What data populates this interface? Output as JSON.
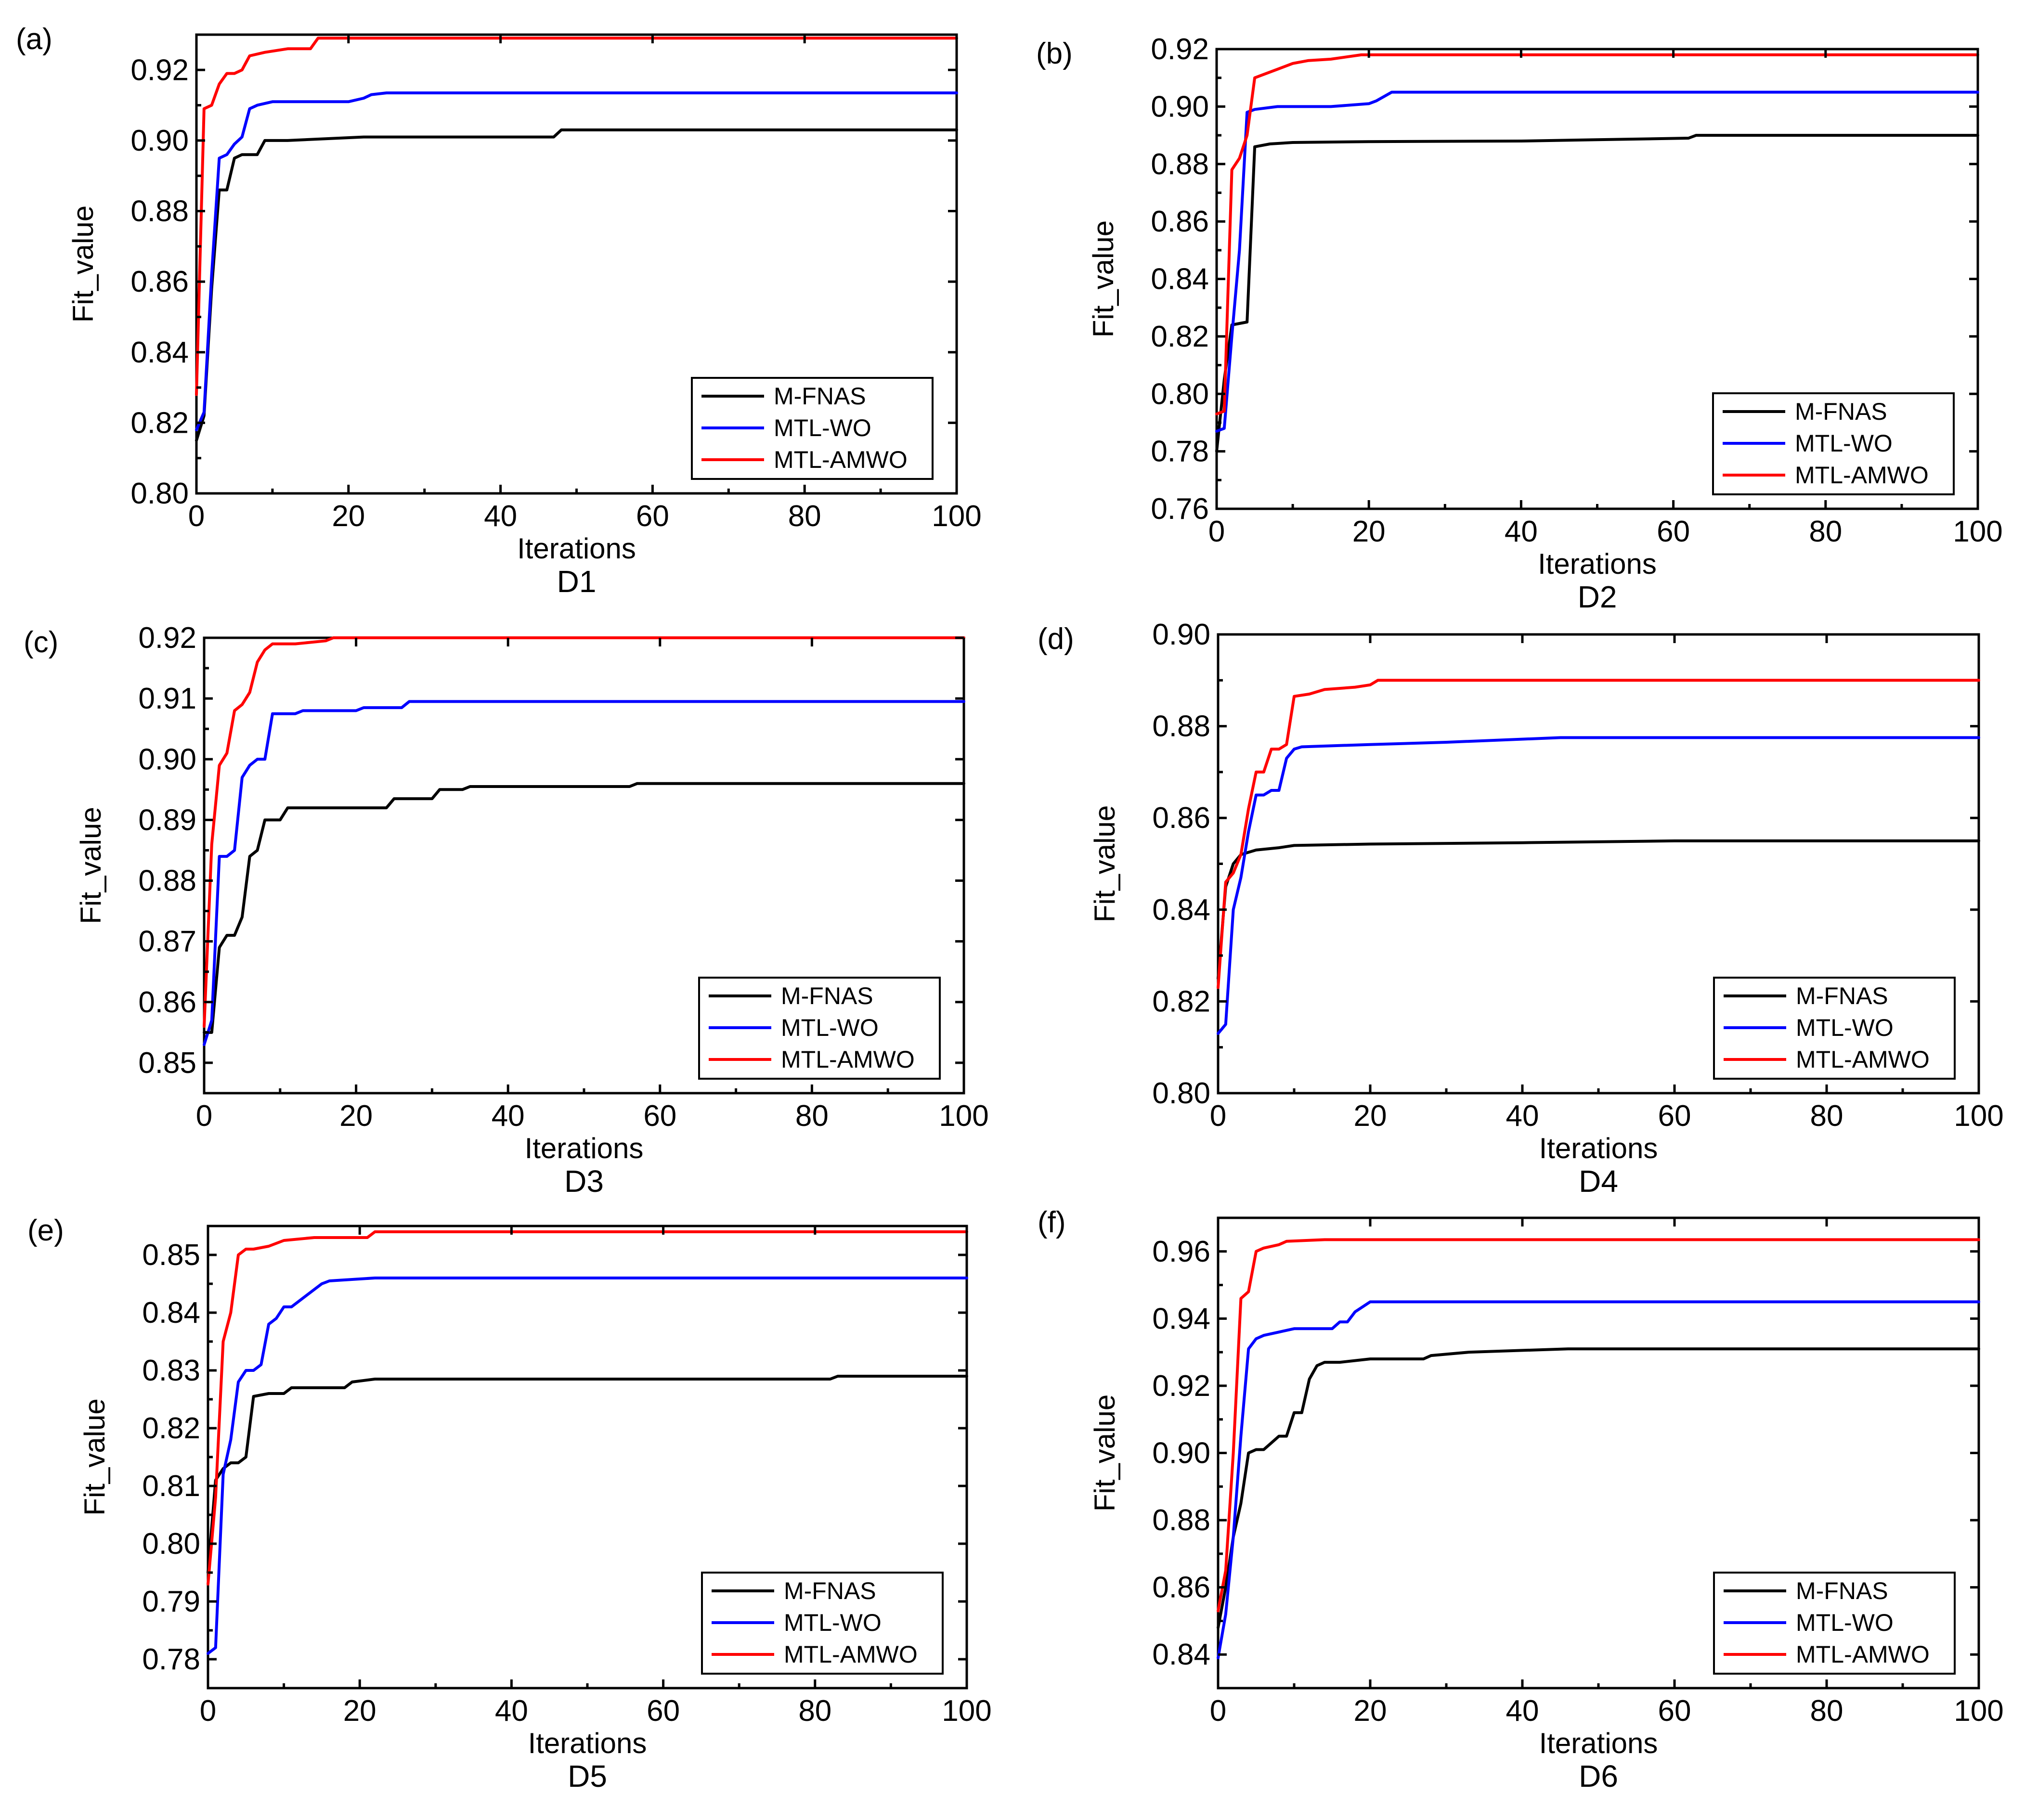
{
  "chart_data": [
    {
      "type": "line",
      "panel_label": "(a)",
      "dataset_label": "D1",
      "xlabel": "Iterations",
      "ylabel": "Fit_value",
      "xlim": [
        0,
        100
      ],
      "ylim": [
        0.8,
        0.93
      ],
      "xticks": [
        0,
        20,
        40,
        60,
        80,
        100
      ],
      "yticks": [
        0.8,
        0.82,
        0.84,
        0.86,
        0.88,
        0.9,
        0.92
      ],
      "ytick_labels": [
        "0.80",
        "0.82",
        "0.84",
        "0.86",
        "0.88",
        "0.90",
        "0.92"
      ],
      "legend_position": "bottom-right",
      "series": [
        {
          "name": "M-FNAS",
          "color": "#000000",
          "x": [
            0,
            1,
            2,
            3,
            4,
            5,
            6,
            7,
            8,
            9,
            12,
            22,
            47,
            48,
            100
          ],
          "values": [
            0.815,
            0.822,
            0.858,
            0.886,
            0.886,
            0.895,
            0.896,
            0.896,
            0.896,
            0.9,
            0.9,
            0.901,
            0.901,
            0.903,
            0.903
          ]
        },
        {
          "name": "MTL-WO",
          "color": "#0000ff",
          "x": [
            0,
            1,
            2,
            3,
            4,
            5,
            6,
            7,
            8,
            10,
            20,
            22,
            23,
            25,
            100
          ],
          "values": [
            0.818,
            0.823,
            0.862,
            0.895,
            0.896,
            0.899,
            0.901,
            0.909,
            0.91,
            0.911,
            0.911,
            0.912,
            0.913,
            0.9135,
            0.9135
          ]
        },
        {
          "name": "MTL-AMWO",
          "color": "#ff0000",
          "x": [
            0,
            1,
            2,
            3,
            4,
            5,
            6,
            7,
            9,
            12,
            15,
            16,
            100
          ],
          "values": [
            0.828,
            0.909,
            0.91,
            0.916,
            0.919,
            0.919,
            0.92,
            0.924,
            0.925,
            0.926,
            0.926,
            0.929,
            0.929
          ]
        }
      ]
    },
    {
      "type": "line",
      "panel_label": "(b)",
      "dataset_label": "D2",
      "xlabel": "Iterations",
      "ylabel": "Fit_value",
      "xlim": [
        0,
        100
      ],
      "ylim": [
        0.76,
        0.92
      ],
      "xticks": [
        0,
        20,
        40,
        60,
        80,
        100
      ],
      "yticks": [
        0.76,
        0.78,
        0.8,
        0.82,
        0.84,
        0.86,
        0.88,
        0.9,
        0.92
      ],
      "ytick_labels": [
        "0.76",
        "0.78",
        "0.80",
        "0.82",
        "0.84",
        "0.86",
        "0.88",
        "0.90",
        "0.92"
      ],
      "legend_position": "bottom-right",
      "series": [
        {
          "name": "M-FNAS",
          "color": "#000000",
          "x": [
            0,
            1,
            2,
            4,
            5,
            7,
            10,
            20,
            40,
            62,
            63,
            100
          ],
          "values": [
            0.78,
            0.805,
            0.824,
            0.825,
            0.886,
            0.887,
            0.8875,
            0.8878,
            0.888,
            0.889,
            0.89,
            0.89
          ]
        },
        {
          "name": "MTL-WO",
          "color": "#0000ff",
          "x": [
            0,
            1,
            2,
            3,
            4,
            5,
            8,
            15,
            20,
            21,
            23,
            100
          ],
          "values": [
            0.787,
            0.788,
            0.82,
            0.85,
            0.898,
            0.899,
            0.9,
            0.9,
            0.901,
            0.902,
            0.905,
            0.905
          ]
        },
        {
          "name": "MTL-AMWO",
          "color": "#ff0000",
          "x": [
            0,
            1,
            2,
            3,
            4,
            5,
            6,
            8,
            10,
            12,
            15,
            19,
            100
          ],
          "values": [
            0.793,
            0.794,
            0.878,
            0.882,
            0.89,
            0.91,
            0.911,
            0.913,
            0.915,
            0.916,
            0.9165,
            0.918,
            0.918
          ]
        }
      ]
    },
    {
      "type": "line",
      "panel_label": "(c)",
      "dataset_label": "D3",
      "xlabel": "Iterations",
      "ylabel": "Fit_value",
      "xlim": [
        0,
        100
      ],
      "ylim": [
        0.845,
        0.92
      ],
      "xticks": [
        0,
        20,
        40,
        60,
        80,
        100
      ],
      "yticks": [
        0.85,
        0.86,
        0.87,
        0.88,
        0.89,
        0.9,
        0.91,
        0.92
      ],
      "ytick_labels": [
        "0.85",
        "0.86",
        "0.87",
        "0.88",
        "0.89",
        "0.90",
        "0.91",
        "0.92"
      ],
      "legend_position": "bottom-right",
      "series": [
        {
          "name": "M-FNAS",
          "color": "#000000",
          "x": [
            0,
            1,
            2,
            3,
            4,
            5,
            6,
            7,
            8,
            10,
            11,
            15,
            24,
            25,
            30,
            31,
            34,
            35,
            56,
            57,
            100
          ],
          "values": [
            0.855,
            0.855,
            0.869,
            0.871,
            0.871,
            0.874,
            0.884,
            0.885,
            0.89,
            0.89,
            0.892,
            0.892,
            0.892,
            0.8935,
            0.8935,
            0.895,
            0.895,
            0.8955,
            0.8955,
            0.896,
            0.896
          ]
        },
        {
          "name": "MTL-WO",
          "color": "#0000ff",
          "x": [
            0,
            1,
            2,
            3,
            4,
            5,
            6,
            7,
            8,
            9,
            12,
            13,
            20,
            21,
            26,
            27,
            100
          ],
          "values": [
            0.853,
            0.857,
            0.884,
            0.884,
            0.885,
            0.897,
            0.899,
            0.9,
            0.9,
            0.9075,
            0.9075,
            0.908,
            0.908,
            0.9085,
            0.9085,
            0.9095,
            0.9095
          ]
        },
        {
          "name": "MTL-AMWO",
          "color": "#ff0000",
          "x": [
            0,
            1,
            2,
            3,
            4,
            5,
            6,
            7,
            8,
            9,
            12,
            16,
            17,
            100
          ],
          "values": [
            0.856,
            0.886,
            0.899,
            0.901,
            0.908,
            0.909,
            0.911,
            0.916,
            0.918,
            0.919,
            0.919,
            0.9195,
            0.92,
            0.92
          ]
        }
      ]
    },
    {
      "type": "line",
      "panel_label": "(d)",
      "dataset_label": "D4",
      "xlabel": "Iterations",
      "ylabel": "Fit_value",
      "xlim": [
        0,
        100
      ],
      "ylim": [
        0.8,
        0.9
      ],
      "xticks": [
        0,
        20,
        40,
        60,
        80,
        100
      ],
      "yticks": [
        0.8,
        0.82,
        0.84,
        0.86,
        0.88,
        0.9
      ],
      "ytick_labels": [
        "0.80",
        "0.82",
        "0.84",
        "0.86",
        "0.88",
        "0.90"
      ],
      "legend_position": "bottom-right",
      "series": [
        {
          "name": "M-FNAS",
          "color": "#000000",
          "x": [
            0,
            1,
            2,
            3,
            5,
            8,
            10,
            20,
            40,
            60,
            100
          ],
          "values": [
            0.825,
            0.845,
            0.85,
            0.852,
            0.853,
            0.8535,
            0.854,
            0.8543,
            0.8546,
            0.855,
            0.855
          ]
        },
        {
          "name": "MTL-WO",
          "color": "#0000ff",
          "x": [
            0,
            1,
            2,
            3,
            4,
            5,
            6,
            7,
            8,
            9,
            10,
            11,
            20,
            30,
            45,
            100
          ],
          "values": [
            0.813,
            0.815,
            0.84,
            0.847,
            0.857,
            0.865,
            0.865,
            0.866,
            0.866,
            0.873,
            0.875,
            0.8755,
            0.876,
            0.8765,
            0.8775,
            0.8775
          ]
        },
        {
          "name": "MTL-AMWO",
          "color": "#ff0000",
          "x": [
            0,
            1,
            2,
            3,
            4,
            5,
            6,
            7,
            8,
            9,
            10,
            12,
            14,
            18,
            20,
            21,
            100
          ],
          "values": [
            0.823,
            0.846,
            0.848,
            0.852,
            0.862,
            0.87,
            0.87,
            0.875,
            0.875,
            0.876,
            0.8865,
            0.887,
            0.888,
            0.8885,
            0.889,
            0.89,
            0.89
          ]
        }
      ]
    },
    {
      "type": "line",
      "panel_label": "(e)",
      "dataset_label": "D5",
      "xlabel": "Iterations",
      "ylabel": "Fit_value",
      "xlim": [
        0,
        100
      ],
      "ylim": [
        0.775,
        0.855
      ],
      "xticks": [
        0,
        20,
        40,
        60,
        80,
        100
      ],
      "yticks": [
        0.78,
        0.79,
        0.8,
        0.81,
        0.82,
        0.83,
        0.84,
        0.85
      ],
      "ytick_labels": [
        "0.78",
        "0.79",
        "0.80",
        "0.81",
        "0.82",
        "0.83",
        "0.84",
        "0.85"
      ],
      "legend_position": "bottom-right",
      "series": [
        {
          "name": "M-FNAS",
          "color": "#000000",
          "x": [
            0,
            1,
            2,
            3,
            4,
            5,
            6,
            8,
            10,
            11,
            18,
            19,
            22,
            82,
            83,
            100
          ],
          "values": [
            0.795,
            0.811,
            0.813,
            0.814,
            0.814,
            0.815,
            0.8255,
            0.826,
            0.826,
            0.827,
            0.827,
            0.828,
            0.8285,
            0.8285,
            0.829,
            0.829
          ]
        },
        {
          "name": "MTL-WO",
          "color": "#0000ff",
          "x": [
            0,
            1,
            2,
            3,
            4,
            5,
            6,
            7,
            8,
            9,
            10,
            11,
            12,
            14,
            15,
            16,
            22,
            52,
            100
          ],
          "values": [
            0.781,
            0.782,
            0.812,
            0.818,
            0.828,
            0.83,
            0.83,
            0.831,
            0.838,
            0.839,
            0.841,
            0.841,
            0.842,
            0.844,
            0.845,
            0.8455,
            0.846,
            0.846,
            0.846
          ]
        },
        {
          "name": "MTL-AMWO",
          "color": "#ff0000",
          "x": [
            0,
            1,
            2,
            3,
            4,
            5,
            6,
            8,
            10,
            14,
            18,
            21,
            22,
            100
          ],
          "values": [
            0.793,
            0.808,
            0.835,
            0.84,
            0.85,
            0.851,
            0.851,
            0.8515,
            0.8525,
            0.853,
            0.853,
            0.853,
            0.854,
            0.854
          ]
        }
      ]
    },
    {
      "type": "line",
      "panel_label": "(f)",
      "dataset_label": "D6",
      "xlabel": "Iterations",
      "ylabel": "Fit_value",
      "xlim": [
        0,
        100
      ],
      "ylim": [
        0.83,
        0.97
      ],
      "xticks": [
        0,
        20,
        40,
        60,
        80,
        100
      ],
      "yticks": [
        0.84,
        0.86,
        0.88,
        0.9,
        0.92,
        0.94,
        0.96
      ],
      "ytick_labels": [
        "0.84",
        "0.86",
        "0.88",
        "0.90",
        "0.92",
        "0.94",
        "0.96"
      ],
      "legend_position": "bottom-right",
      "series": [
        {
          "name": "M-FNAS",
          "color": "#000000",
          "x": [
            0,
            1,
            2,
            3,
            4,
            5,
            6,
            7,
            8,
            9,
            10,
            11,
            12,
            13,
            14,
            16,
            18,
            20,
            27,
            28,
            33,
            46,
            100
          ],
          "values": [
            0.848,
            0.86,
            0.875,
            0.885,
            0.9,
            0.901,
            0.901,
            0.903,
            0.905,
            0.905,
            0.912,
            0.912,
            0.922,
            0.926,
            0.927,
            0.927,
            0.9275,
            0.928,
            0.928,
            0.929,
            0.93,
            0.931,
            0.931
          ]
        },
        {
          "name": "MTL-WO",
          "color": "#0000ff",
          "x": [
            0,
            1,
            2,
            3,
            4,
            5,
            6,
            8,
            10,
            15,
            16,
            17,
            18,
            20,
            100
          ],
          "values": [
            0.839,
            0.852,
            0.875,
            0.905,
            0.931,
            0.934,
            0.935,
            0.936,
            0.937,
            0.937,
            0.939,
            0.939,
            0.942,
            0.945,
            0.945
          ]
        },
        {
          "name": "MTL-AMWO",
          "color": "#ff0000",
          "x": [
            0,
            1,
            2,
            3,
            4,
            5,
            6,
            8,
            9,
            14,
            100
          ],
          "values": [
            0.853,
            0.865,
            0.9,
            0.946,
            0.948,
            0.96,
            0.961,
            0.962,
            0.963,
            0.9635,
            0.9635
          ]
        }
      ]
    }
  ]
}
